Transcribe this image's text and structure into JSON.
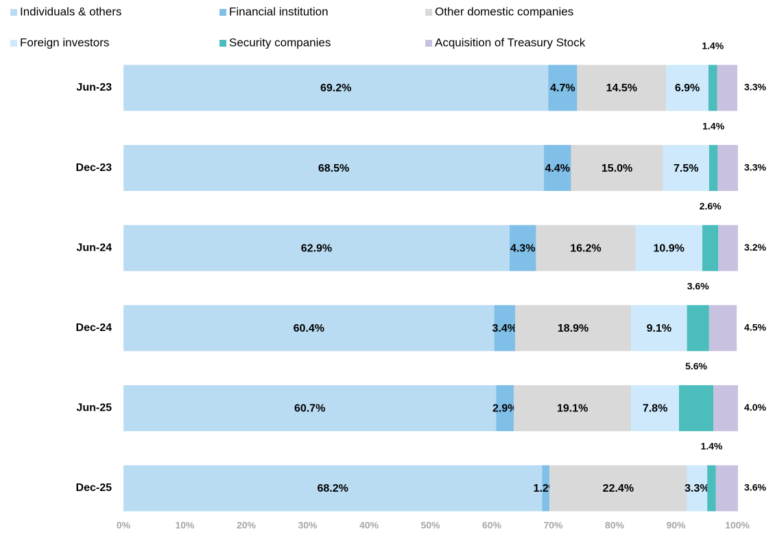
{
  "chart_data": {
    "type": "stacked_bar_horizontal",
    "categories": [
      "Jun-23",
      "Dec-23",
      "Jun-24",
      "Dec-24",
      "Jun-25",
      "Dec-25"
    ],
    "series": [
      {
        "name": "Individuals & others",
        "color": "#b9dcf3",
        "values": [
          69.2,
          68.5,
          62.9,
          60.4,
          60.7,
          68.2
        ],
        "value_labels": [
          "69.2%",
          "68.5%",
          "62.9%",
          "60.4%",
          "60.7%",
          "68.2%"
        ]
      },
      {
        "name": "Financial institution",
        "color": "#80bfe7",
        "values": [
          4.7,
          4.4,
          4.3,
          3.4,
          2.9,
          1.2
        ],
        "value_labels": [
          "4.7%",
          "4.4%",
          "4.3%",
          "3.4%",
          "2.9%",
          "1.2%"
        ]
      },
      {
        "name": "Other domestic companies",
        "color": "#d9d9d9",
        "values": [
          14.5,
          15,
          16.2,
          18.9,
          19.1,
          22.4
        ],
        "value_labels": [
          "14.5%",
          "15.0%",
          "16.2%",
          "18.9%",
          "19.1%",
          "22.4%"
        ]
      },
      {
        "name": "Foreign investors",
        "color": "#cde9fb",
        "values": [
          6.9,
          7.5,
          10.9,
          9.1,
          7.8,
          3.3
        ],
        "value_labels": [
          "6.9%",
          "7.5%",
          "10.9%",
          "9.1%",
          "7.8%",
          "3.3%"
        ]
      },
      {
        "name": "Security companies",
        "color": "#4bbdbc",
        "values": [
          1.4,
          1.4,
          2.6,
          3.6,
          5.6,
          1.4
        ],
        "value_labels": [
          "1.4%",
          "1.4%",
          "2.6%",
          "3.6%",
          "5.6%",
          "1.4%"
        ]
      },
      {
        "name": "Acquisition of Treasury Stock",
        "color": "#c9c1e0",
        "values": [
          3.3,
          3.3,
          3.2,
          4.5,
          4.0,
          3.6
        ],
        "value_labels": [
          "3.3%",
          "3.3%",
          "3.2%",
          "4.5%",
          "4.0%",
          "3.6%"
        ]
      }
    ],
    "xlim": [
      0,
      100
    ],
    "xticks": [
      {
        "value": 0,
        "label": "0%"
      },
      {
        "value": 10,
        "label": "10%"
      },
      {
        "value": 20,
        "label": "20%"
      },
      {
        "value": 30,
        "label": "30%"
      },
      {
        "value": 40,
        "label": "40%"
      },
      {
        "value": 50,
        "label": "50%"
      },
      {
        "value": 60,
        "label": "60%"
      },
      {
        "value": 70,
        "label": "70%"
      },
      {
        "value": 80,
        "label": "80%"
      },
      {
        "value": 90,
        "label": "90%"
      },
      {
        "value": 100,
        "label": "100%"
      }
    ],
    "legend": "top"
  }
}
